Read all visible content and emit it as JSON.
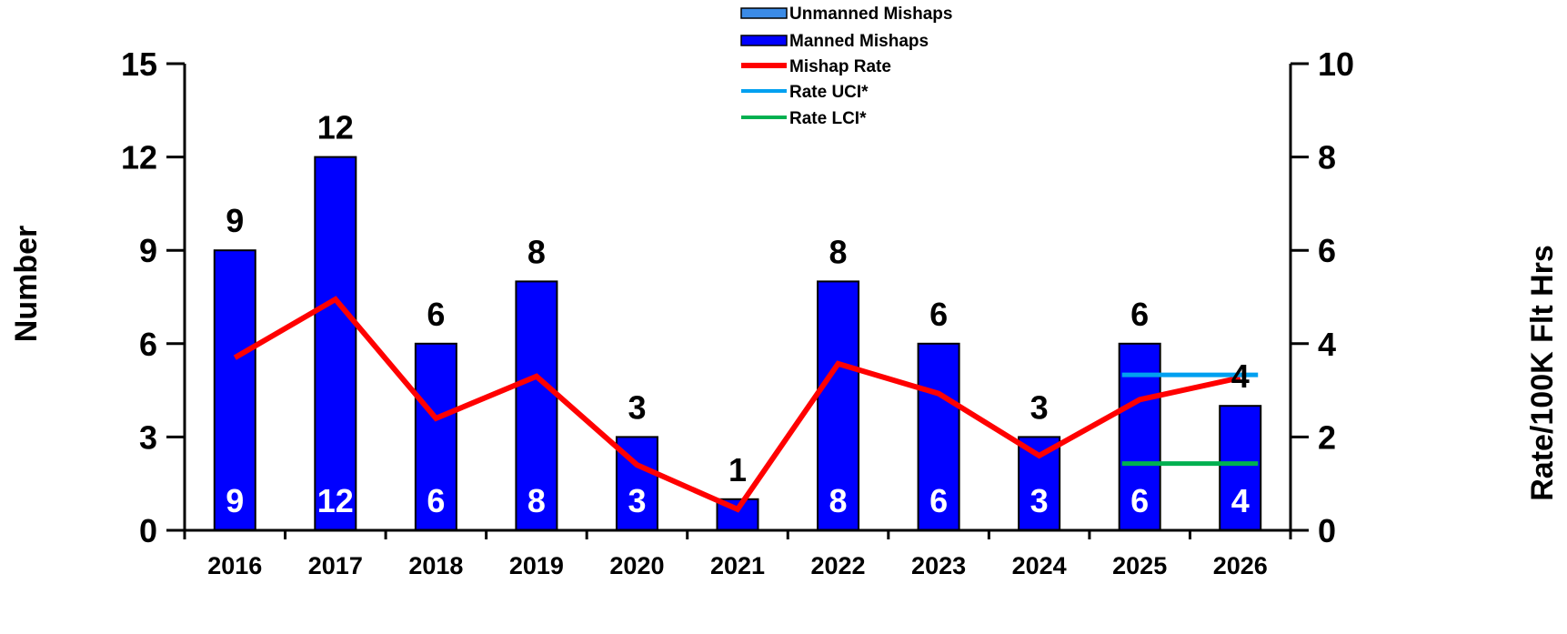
{
  "chart_data": {
    "type": "bar",
    "categories": [
      "2016",
      "2017",
      "2018",
      "2019",
      "2020",
      "2021",
      "2022",
      "2023",
      "2024",
      "2025",
      "2026"
    ],
    "series": [
      {
        "name": "Unmanned Mishaps",
        "type": "bar",
        "color": "#3b8be6",
        "values": [
          0,
          0,
          0,
          0,
          0,
          0,
          0,
          0,
          0,
          0,
          0
        ]
      },
      {
        "name": "Manned Mishaps",
        "type": "bar",
        "color": "#0000ff",
        "values": [
          9,
          12,
          6,
          8,
          3,
          1,
          8,
          6,
          3,
          6,
          4
        ]
      },
      {
        "name": "Mishap Rate",
        "type": "line",
        "axis": "right",
        "color": "#ff0000",
        "values": [
          3.7,
          4.95,
          2.4,
          3.3,
          1.4,
          0.45,
          3.57,
          2.93,
          1.6,
          2.8,
          3.27
        ]
      },
      {
        "name": "Rate UCI*",
        "type": "segment",
        "axis": "right",
        "color": "#00a0f0",
        "x_span": [
          "2025",
          "2026"
        ],
        "value": 3.33
      },
      {
        "name": "Rate LCI*",
        "type": "segment",
        "axis": "right",
        "color": "#00b050",
        "x_span": [
          "2025",
          "2026"
        ],
        "value": 1.43
      }
    ],
    "bar_top_labels": [
      "9",
      "12",
      "6",
      "8",
      "3",
      "1",
      "8",
      "6",
      "3",
      "6",
      "4"
    ],
    "bar_inner_labels": [
      "9",
      "12",
      "6",
      "8",
      "3",
      "",
      "8",
      "6",
      "3",
      "6",
      "4"
    ],
    "ylabel": "Number",
    "ylabel_right": "Rate/100K Flt Hrs",
    "ylim": [
      0,
      15
    ],
    "ylim_right": [
      0,
      10
    ],
    "yticks": [
      "0",
      "3",
      "6",
      "9",
      "12",
      "15"
    ],
    "yticks_right": [
      "0",
      "2",
      "4",
      "6",
      "8",
      "10"
    ],
    "legend_position": "top-center",
    "grid": false
  }
}
